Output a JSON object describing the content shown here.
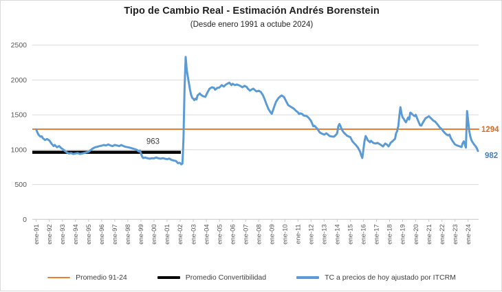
{
  "title": "Tipo de Cambio Real - Estimación Andrés Borenstein",
  "subtitle": "(Desde enero 1991 a octube 2024)",
  "colors": {
    "line_blue": "#5B9BD5",
    "line_orange": "#ED7D31",
    "line_black": "#000000",
    "gridline": "#D9D9D9",
    "axis": "#C6C6C6",
    "tick_text": "#595959",
    "label_orange": "#E06A1E",
    "label_blue": "#4A7EBB",
    "label_black": "#404040"
  },
  "legend": [
    {
      "label": "Promedio 91-24",
      "color": "#ED7D31",
      "thickness": 2
    },
    {
      "label": "Promedio Convertibilidad",
      "color": "#000000",
      "thickness": 4
    },
    {
      "label": "TC a precios de hoy ajustado por ITCRM",
      "color": "#5B9BD5",
      "thickness": 4
    }
  ],
  "annotations": {
    "promedio_convertibilidad_label": "963",
    "promedio_91_24_label": "1294",
    "last_value_label": "982"
  },
  "chart_data": {
    "type": "line",
    "title": "Tipo de Cambio Real - Estimación Andrés Borenstein",
    "subtitle": "(Desde enero 1991 a octube 2024)",
    "x_unit": "decimal_year (ene-91 = 1991.0, oct-24 = 2024.75)",
    "ylim": [
      0,
      2500
    ],
    "y_ticks": [
      0,
      500,
      1000,
      1500,
      2000,
      2500
    ],
    "x_tick_labels": [
      "ene-91",
      "ene-92",
      "ene-93",
      "ene-94",
      "ene-95",
      "ene-96",
      "ene-97",
      "ene-98",
      "ene-99",
      "ene-00",
      "ene-01",
      "ene-02",
      "ene-03",
      "ene-04",
      "ene-05",
      "ene-06",
      "ene-07",
      "ene-08",
      "ene-09",
      "ene-10",
      "ene-11",
      "ene-12",
      "ene-13",
      "ene-14",
      "ene-15",
      "ene-16",
      "ene-17",
      "ene-18",
      "ene-19",
      "ene-20",
      "ene-21",
      "ene-22",
      "ene-23",
      "ene-24"
    ],
    "grid": true,
    "legend_position": "bottom",
    "series": [
      {
        "name": "Promedio 91-24",
        "type": "hline",
        "value": 1294,
        "x_end_year": 2024.85,
        "data_label": "1294"
      },
      {
        "name": "Promedio Convertibilidad",
        "type": "hline",
        "value": 963,
        "x_end_year": 2002.05,
        "data_label": "963"
      },
      {
        "name": "TC a precios de hoy ajustado por ITCRM",
        "type": "line",
        "last_point_label": "982",
        "points": [
          [
            1991.0,
            1290
          ],
          [
            1991.08,
            1252
          ],
          [
            1991.17,
            1216
          ],
          [
            1991.25,
            1200
          ],
          [
            1991.33,
            1186
          ],
          [
            1991.42,
            1192
          ],
          [
            1991.5,
            1166
          ],
          [
            1991.67,
            1140
          ],
          [
            1991.83,
            1152
          ],
          [
            1992.0,
            1134
          ],
          [
            1992.17,
            1084
          ],
          [
            1992.33,
            1052
          ],
          [
            1992.42,
            1068
          ],
          [
            1992.58,
            1035
          ],
          [
            1992.75,
            1052
          ],
          [
            1992.92,
            1020
          ],
          [
            1993.08,
            1000
          ],
          [
            1993.17,
            985
          ],
          [
            1993.33,
            962
          ],
          [
            1993.5,
            945
          ],
          [
            1993.67,
            952
          ],
          [
            1993.83,
            938
          ],
          [
            1994.0,
            945
          ],
          [
            1994.17,
            952
          ],
          [
            1994.33,
            938
          ],
          [
            1994.5,
            945
          ],
          [
            1994.67,
            952
          ],
          [
            1994.83,
            962
          ],
          [
            1995.0,
            970
          ],
          [
            1995.17,
            996
          ],
          [
            1995.33,
            1018
          ],
          [
            1995.5,
            1035
          ],
          [
            1995.67,
            1042
          ],
          [
            1995.83,
            1051
          ],
          [
            1996.0,
            1058
          ],
          [
            1996.17,
            1068
          ],
          [
            1996.33,
            1060
          ],
          [
            1996.5,
            1075
          ],
          [
            1996.67,
            1061
          ],
          [
            1996.83,
            1051
          ],
          [
            1997.0,
            1068
          ],
          [
            1997.17,
            1061
          ],
          [
            1997.33,
            1051
          ],
          [
            1997.5,
            1068
          ],
          [
            1997.67,
            1051
          ],
          [
            1997.83,
            1041
          ],
          [
            1998.0,
            1035
          ],
          [
            1998.17,
            1028
          ],
          [
            1998.33,
            1018
          ],
          [
            1998.5,
            1009
          ],
          [
            1998.67,
            1000
          ],
          [
            1998.83,
            976
          ],
          [
            1998.92,
            988
          ],
          [
            1999.0,
            950
          ],
          [
            1999.08,
            905
          ],
          [
            1999.17,
            880
          ],
          [
            1999.33,
            888
          ],
          [
            1999.5,
            876
          ],
          [
            1999.67,
            870
          ],
          [
            1999.83,
            878
          ],
          [
            2000.0,
            875
          ],
          [
            2000.17,
            888
          ],
          [
            2000.33,
            876
          ],
          [
            2000.5,
            870
          ],
          [
            2000.67,
            878
          ],
          [
            2000.83,
            870
          ],
          [
            2001.0,
            864
          ],
          [
            2001.17,
            872
          ],
          [
            2001.33,
            854
          ],
          [
            2001.5,
            845
          ],
          [
            2001.67,
            838
          ],
          [
            2001.83,
            806
          ],
          [
            2001.92,
            812
          ],
          [
            2002.0,
            808
          ],
          [
            2002.08,
            790
          ],
          [
            2002.17,
            800
          ],
          [
            2002.25,
            1150
          ],
          [
            2002.33,
            1850
          ],
          [
            2002.42,
            2330
          ],
          [
            2002.5,
            2150
          ],
          [
            2002.58,
            2050
          ],
          [
            2002.67,
            1950
          ],
          [
            2002.75,
            1860
          ],
          [
            2002.83,
            1790
          ],
          [
            2002.92,
            1745
          ],
          [
            2003.0,
            1730
          ],
          [
            2003.08,
            1710
          ],
          [
            2003.17,
            1732
          ],
          [
            2003.25,
            1720
          ],
          [
            2003.33,
            1778
          ],
          [
            2003.5,
            1807
          ],
          [
            2003.58,
            1788
          ],
          [
            2003.75,
            1768
          ],
          [
            2003.92,
            1758
          ],
          [
            2004.08,
            1820
          ],
          [
            2004.25,
            1876
          ],
          [
            2004.42,
            1896
          ],
          [
            2004.58,
            1888
          ],
          [
            2004.67,
            1860
          ],
          [
            2004.83,
            1886
          ],
          [
            2005.0,
            1892
          ],
          [
            2005.17,
            1926
          ],
          [
            2005.33,
            1906
          ],
          [
            2005.5,
            1936
          ],
          [
            2005.75,
            1962
          ],
          [
            2005.92,
            1926
          ],
          [
            2006.0,
            1946
          ],
          [
            2006.17,
            1926
          ],
          [
            2006.33,
            1936
          ],
          [
            2006.58,
            1916
          ],
          [
            2006.75,
            1896
          ],
          [
            2006.92,
            1916
          ],
          [
            2007.08,
            1900
          ],
          [
            2007.17,
            1876
          ],
          [
            2007.33,
            1847
          ],
          [
            2007.5,
            1867
          ],
          [
            2007.58,
            1876
          ],
          [
            2007.83,
            1837
          ],
          [
            2008.0,
            1846
          ],
          [
            2008.17,
            1827
          ],
          [
            2008.33,
            1778
          ],
          [
            2008.42,
            1739
          ],
          [
            2008.58,
            1660
          ],
          [
            2008.75,
            1581
          ],
          [
            2008.92,
            1532
          ],
          [
            2009.0,
            1515
          ],
          [
            2009.17,
            1610
          ],
          [
            2009.33,
            1690
          ],
          [
            2009.5,
            1739
          ],
          [
            2009.67,
            1768
          ],
          [
            2009.75,
            1778
          ],
          [
            2009.92,
            1758
          ],
          [
            2010.0,
            1730
          ],
          [
            2010.25,
            1640
          ],
          [
            2010.5,
            1610
          ],
          [
            2010.67,
            1591
          ],
          [
            2010.83,
            1561
          ],
          [
            2011.0,
            1535
          ],
          [
            2011.08,
            1512
          ],
          [
            2011.17,
            1522
          ],
          [
            2011.33,
            1512
          ],
          [
            2011.42,
            1492
          ],
          [
            2011.67,
            1482
          ],
          [
            2011.83,
            1455
          ],
          [
            2012.0,
            1413
          ],
          [
            2012.17,
            1336
          ],
          [
            2012.25,
            1345
          ],
          [
            2012.5,
            1295
          ],
          [
            2012.67,
            1246
          ],
          [
            2012.83,
            1230
          ],
          [
            2013.0,
            1216
          ],
          [
            2013.17,
            1235
          ],
          [
            2013.42,
            1196
          ],
          [
            2013.58,
            1190
          ],
          [
            2013.75,
            1186
          ],
          [
            2013.92,
            1216
          ],
          [
            2014.0,
            1240
          ],
          [
            2014.08,
            1335
          ],
          [
            2014.17,
            1368
          ],
          [
            2014.25,
            1340
          ],
          [
            2014.33,
            1295
          ],
          [
            2014.5,
            1246
          ],
          [
            2014.75,
            1200
          ],
          [
            2014.92,
            1186
          ],
          [
            2015.0,
            1180
          ],
          [
            2015.17,
            1117
          ],
          [
            2015.42,
            1068
          ],
          [
            2015.58,
            1030
          ],
          [
            2015.67,
            999
          ],
          [
            2015.75,
            969
          ],
          [
            2015.83,
            920
          ],
          [
            2015.92,
            881
          ],
          [
            2016.0,
            1005
          ],
          [
            2016.08,
            1120
          ],
          [
            2016.17,
            1196
          ],
          [
            2016.25,
            1170
          ],
          [
            2016.33,
            1137
          ],
          [
            2016.5,
            1107
          ],
          [
            2016.58,
            1127
          ],
          [
            2016.75,
            1098
          ],
          [
            2016.92,
            1088
          ],
          [
            2017.08,
            1098
          ],
          [
            2017.25,
            1078
          ],
          [
            2017.42,
            1058
          ],
          [
            2017.5,
            1048
          ],
          [
            2017.67,
            1088
          ],
          [
            2017.83,
            1068
          ],
          [
            2017.92,
            1048
          ],
          [
            2018.0,
            1068
          ],
          [
            2018.08,
            1098
          ],
          [
            2018.25,
            1127
          ],
          [
            2018.42,
            1157
          ],
          [
            2018.5,
            1235
          ],
          [
            2018.58,
            1265
          ],
          [
            2018.67,
            1344
          ],
          [
            2018.75,
            1492
          ],
          [
            2018.83,
            1610
          ],
          [
            2018.92,
            1512
          ],
          [
            2019.0,
            1462
          ],
          [
            2019.08,
            1443
          ],
          [
            2019.17,
            1413
          ],
          [
            2019.25,
            1393
          ],
          [
            2019.42,
            1462
          ],
          [
            2019.5,
            1433
          ],
          [
            2019.58,
            1532
          ],
          [
            2019.67,
            1522
          ],
          [
            2019.83,
            1492
          ],
          [
            2019.92,
            1482
          ],
          [
            2020.0,
            1500
          ],
          [
            2020.17,
            1420
          ],
          [
            2020.33,
            1352
          ],
          [
            2020.42,
            1345
          ],
          [
            2020.58,
            1400
          ],
          [
            2020.75,
            1450
          ],
          [
            2020.92,
            1470
          ],
          [
            2021.0,
            1480
          ],
          [
            2021.17,
            1450
          ],
          [
            2021.33,
            1420
          ],
          [
            2021.5,
            1400
          ],
          [
            2021.67,
            1360
          ],
          [
            2021.83,
            1320
          ],
          [
            2022.0,
            1290
          ],
          [
            2022.17,
            1250
          ],
          [
            2022.33,
            1220
          ],
          [
            2022.5,
            1205
          ],
          [
            2022.58,
            1216
          ],
          [
            2022.67,
            1170
          ],
          [
            2022.83,
            1120
          ],
          [
            2023.0,
            1076
          ],
          [
            2023.17,
            1060
          ],
          [
            2023.33,
            1050
          ],
          [
            2023.5,
            1038
          ],
          [
            2023.58,
            1090
          ],
          [
            2023.67,
            1120
          ],
          [
            2023.75,
            1080
          ],
          [
            2023.83,
            1030
          ],
          [
            2023.92,
            1555
          ],
          [
            2024.0,
            1420
          ],
          [
            2024.08,
            1280
          ],
          [
            2024.17,
            1190
          ],
          [
            2024.25,
            1140
          ],
          [
            2024.33,
            1110
          ],
          [
            2024.42,
            1085
          ],
          [
            2024.5,
            1065
          ],
          [
            2024.58,
            1048
          ],
          [
            2024.67,
            1020
          ],
          [
            2024.75,
            982
          ]
        ]
      }
    ]
  }
}
